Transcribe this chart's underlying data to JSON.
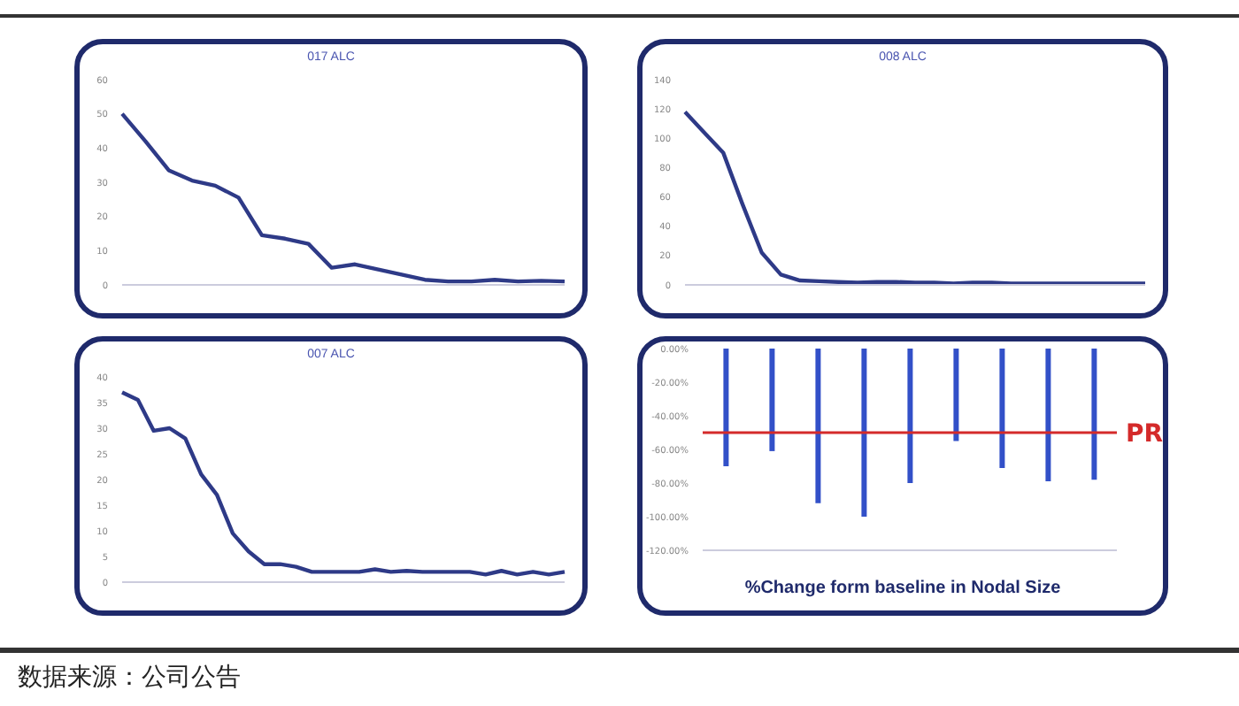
{
  "chart_data": [
    {
      "type": "line",
      "title": "017 ALC",
      "categories": [
        null,
        null,
        null,
        null,
        null,
        null,
        null,
        null,
        null,
        null,
        null,
        null,
        null,
        null,
        null,
        null,
        null,
        null,
        null,
        null
      ],
      "series": [
        {
          "color": "#2e3a87",
          "values": [
            50,
            42,
            33.5,
            30.5,
            29,
            25.5,
            14.5,
            13.5,
            12,
            5,
            6,
            4.5,
            3,
            1.5,
            1,
            1,
            1.5,
            1,
            1.2,
            1
          ]
        }
      ],
      "ylim": [
        0,
        60
      ],
      "yticks": [
        0,
        10,
        20,
        30,
        40,
        50,
        60
      ],
      "grid": false,
      "legend": false,
      "marker": "none",
      "tick_labels": "y"
    },
    {
      "type": "line",
      "title": "008 ALC",
      "categories": [
        null,
        null,
        null,
        null,
        null,
        null,
        null,
        null,
        null,
        null,
        null,
        null,
        null,
        null,
        null,
        null,
        null,
        null,
        null,
        null,
        null,
        null,
        null,
        null,
        null
      ],
      "series": [
        {
          "color": "#2e3a87",
          "values": [
            118,
            104,
            90,
            55,
            22,
            7,
            3,
            2.5,
            2,
            1.5,
            2,
            2,
            1.5,
            1.5,
            1,
            1.5,
            1.5,
            1,
            1,
            1,
            1,
            1,
            1,
            1,
            1
          ]
        }
      ],
      "ylim": [
        0,
        140
      ],
      "yticks": [
        0,
        20,
        40,
        60,
        80,
        100,
        120,
        140
      ],
      "grid": false,
      "legend": false,
      "marker": "none",
      "tick_labels": "y"
    },
    {
      "type": "line",
      "title": "007 ALC",
      "categories": [
        null,
        null,
        null,
        null,
        null,
        null,
        null,
        null,
        null,
        null,
        null,
        null,
        null,
        null,
        null,
        null,
        null,
        null,
        null,
        null,
        null,
        null,
        null,
        null,
        null,
        null,
        null,
        null,
        null
      ],
      "series": [
        {
          "color": "#2e3a87",
          "values": [
            37,
            35.5,
            29.5,
            30,
            28,
            21,
            17,
            9.5,
            6,
            3.5,
            3.5,
            3,
            2,
            2,
            2,
            2,
            2.5,
            2,
            2.2,
            2,
            2,
            2,
            2,
            1.5,
            2.2,
            1.5,
            2,
            1.5,
            2
          ]
        }
      ],
      "ylim": [
        0,
        40
      ],
      "yticks": [
        0,
        5,
        10,
        15,
        20,
        25,
        30,
        35,
        40
      ],
      "grid": false,
      "legend": false,
      "marker": "none",
      "tick_labels": "y",
      "annotations": [
        "数据来源：公司公告"
      ]
    },
    {
      "type": "bar",
      "xlabel": "%Change form baseline in Nodal Size",
      "categories": [
        null,
        null,
        null,
        null,
        null,
        null,
        null,
        null,
        null
      ],
      "series": [
        {
          "color": "#3250c8",
          "values": [
            -70,
            -61,
            -92,
            -100,
            -80,
            -55,
            -71,
            -79,
            -78
          ]
        }
      ],
      "ylim": [
        -120,
        0
      ],
      "yticks": [
        {
          "value": 0,
          "label": "0.00%"
        },
        {
          "value": -20,
          "label": "-20.00%"
        },
        {
          "value": -40,
          "label": "-40.00%"
        },
        {
          "value": -60,
          "label": "-60.00%"
        },
        {
          "value": -80,
          "label": "-80.00%"
        },
        {
          "value": -100,
          "label": "-100.00%"
        },
        {
          "value": -120,
          "label": "-120.00%"
        }
      ],
      "ref_lines": [
        {
          "axis": "y",
          "value": -50,
          "label": "PR",
          "color": "#d42a2a"
        }
      ],
      "grid": false,
      "legend": false,
      "tick_labels": "y"
    }
  ]
}
